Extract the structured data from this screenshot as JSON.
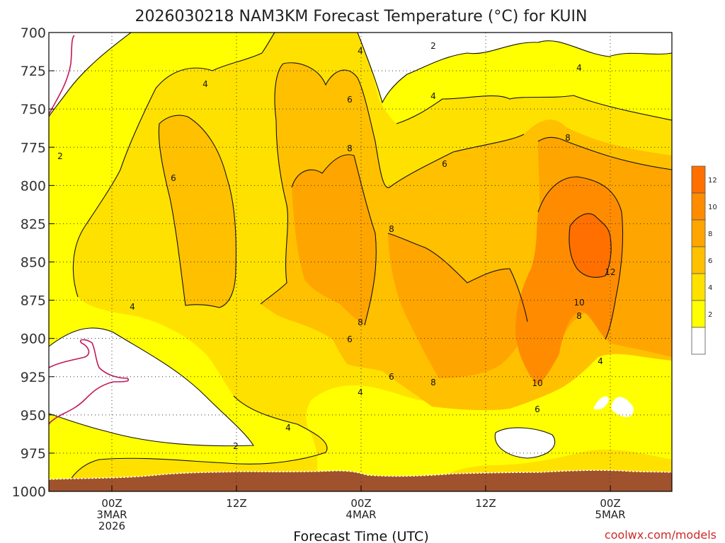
{
  "chart_data": {
    "type": "contour",
    "title": "2026030218 NAM3KM Forecast Temperature (°C) for KUIN",
    "xlabel": "Forecast Time (UTC)",
    "watermark": "coolwx.com/models",
    "y_axis": {
      "scale": "pressure",
      "range": [
        1000,
        700
      ],
      "ticks": [
        700,
        725,
        750,
        775,
        800,
        825,
        850,
        875,
        900,
        925,
        950,
        975,
        1000
      ]
    },
    "x_axis": {
      "range": [
        "2026-03-02 18Z",
        "2026-03-05 06Z"
      ],
      "ticks": [
        {
          "line1": "00Z",
          "line2": "3MAR",
          "line3": "2026"
        },
        {
          "line1": "12Z",
          "line2": "",
          "line3": ""
        },
        {
          "line1": "00Z",
          "line2": "4MAR",
          "line3": ""
        },
        {
          "line1": "12Z",
          "line2": "",
          "line3": ""
        },
        {
          "line1": "00Z",
          "line2": "5MAR",
          "line3": ""
        }
      ]
    },
    "grid": "dotted",
    "colorbar": {
      "placement": "right",
      "levels": [
        2,
        4,
        6,
        8,
        10,
        12
      ],
      "colors": {
        "below_2": "#ffffff",
        "2_4": "#ffff00",
        "4_6": "#ffe100",
        "6_8": "#ffc000",
        "8_10": "#ffa500",
        "10_12": "#ff8c00",
        "12_14": "#ff7000"
      }
    },
    "freezing_line_color": "#c2185b",
    "ground_color": "#a0522d",
    "contour_labels": [
      "2",
      "2",
      "2",
      "4",
      "4",
      "4",
      "4",
      "4",
      "4",
      "4",
      "4",
      "6",
      "6",
      "6",
      "6",
      "6",
      "6",
      "8",
      "8",
      "8",
      "8",
      "8",
      "8",
      "10",
      "10",
      "12"
    ]
  }
}
